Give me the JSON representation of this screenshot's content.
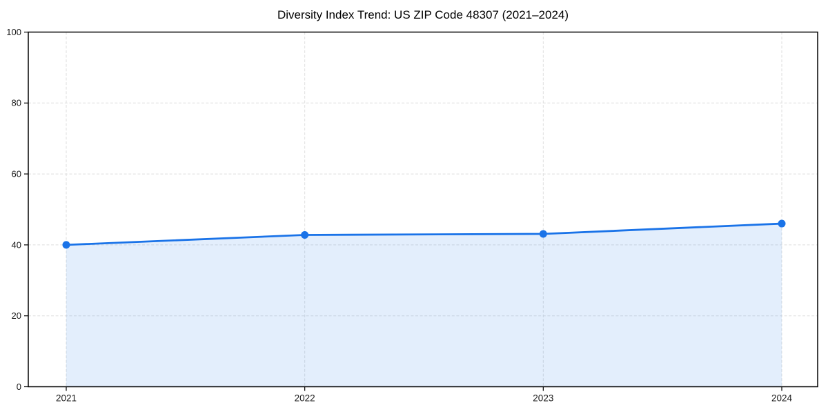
{
  "page": {
    "background": "#ffffff"
  },
  "chart_data": {
    "type": "line",
    "title": "Diversity Index Trend: US ZIP Code 48307 (2021–2024)",
    "x": [
      "2021",
      "2022",
      "2023",
      "2024"
    ],
    "series": [
      {
        "name": "Diversity Index",
        "values": [
          40.0,
          42.8,
          43.1,
          46.0
        ],
        "color": "#1a73e8",
        "marker": "circle",
        "area_fill": true,
        "area_opacity": 0.12
      }
    ],
    "xlabel": "",
    "ylabel": "",
    "ylim": [
      0,
      100
    ],
    "yticks": [
      0,
      20,
      40,
      60,
      80,
      100
    ],
    "grid": "dashed, both axes",
    "legend": "none",
    "axis_color": "#000000",
    "grid_color": "#dedede",
    "tick_label_color": "#1a1a1a"
  }
}
